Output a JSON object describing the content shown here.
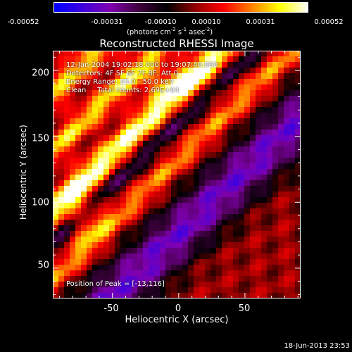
{
  "colorbar": {
    "ticks": [
      "-0.00052",
      "-0.00031",
      "-0.00010",
      "0.00010",
      "0.00031",
      "0.00052"
    ],
    "unit": "(photons cm",
    "unit_exp1": "-2",
    "unit_mid": " s",
    "unit_exp2": "-1",
    "unit_end": " asec",
    "unit_exp3": "-2",
    "unit_close": ")"
  },
  "info": {
    "time_range": "12-Jan-2004 19:02:18.000 to 19:07:40.000",
    "detectors": "Detectors: 4F 5F 6F 7F 8F, Att 0",
    "energy": "Energy Range: 25.0 - 50.0 keV",
    "clean": "Clean     Total counts: 2.69E+04",
    "peak": "Position of Peak = [-13,116]"
  },
  "timestamp": "18-Jun-2013 23:53",
  "chart_data": {
    "type": "heatmap",
    "title": "Reconstructed RHESSI Image",
    "xlabel": "Heliocentric X (arcsec)",
    "ylabel": "Heliocentric Y (arcsec)",
    "xlim": [
      -95,
      92
    ],
    "ylim": [
      27,
      215
    ],
    "xticks": [
      -50,
      0,
      50
    ],
    "xtick_labels": [
      "-50",
      "0",
      "50"
    ],
    "yticks": [
      50,
      100,
      150,
      200
    ],
    "ytick_labels": [
      "50",
      "100",
      "150",
      "200"
    ],
    "colorscale": {
      "min": -0.00052,
      "max": 0.00052,
      "colors": [
        "#0000ff",
        "#3f00e0",
        "#8000b0",
        "#400040",
        "#000000",
        "#900000",
        "#ff0000",
        "#ff8000",
        "#ffff00",
        "#ffffff"
      ]
    },
    "grid": false
  }
}
